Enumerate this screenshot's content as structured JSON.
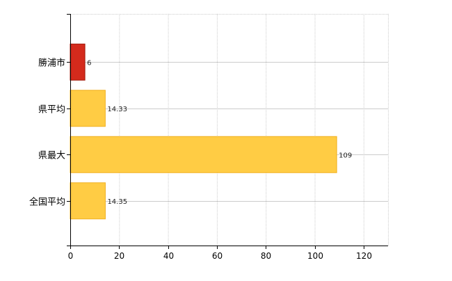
{
  "chart_data": {
    "type": "bar",
    "orientation": "horizontal",
    "title": "",
    "xlabel": "",
    "ylabel": "",
    "categories": [
      "勝浦市",
      "県平均",
      "県最大",
      "全国平均"
    ],
    "values": [
      6,
      14.33,
      109,
      14.35
    ],
    "value_labels": [
      "6",
      "14.33",
      "109",
      "14.35"
    ],
    "bar_colors": [
      "#d42a1c",
      "#ffcc44",
      "#ffcc44",
      "#ffcc44"
    ],
    "bar_edge_colors": [
      "#a01808",
      "#f0b020",
      "#f0b020",
      "#f0b020"
    ],
    "xlim": [
      0,
      130
    ],
    "xticks": [
      0,
      20,
      40,
      60,
      80,
      100,
      120
    ],
    "grid": true,
    "legend": "none"
  }
}
